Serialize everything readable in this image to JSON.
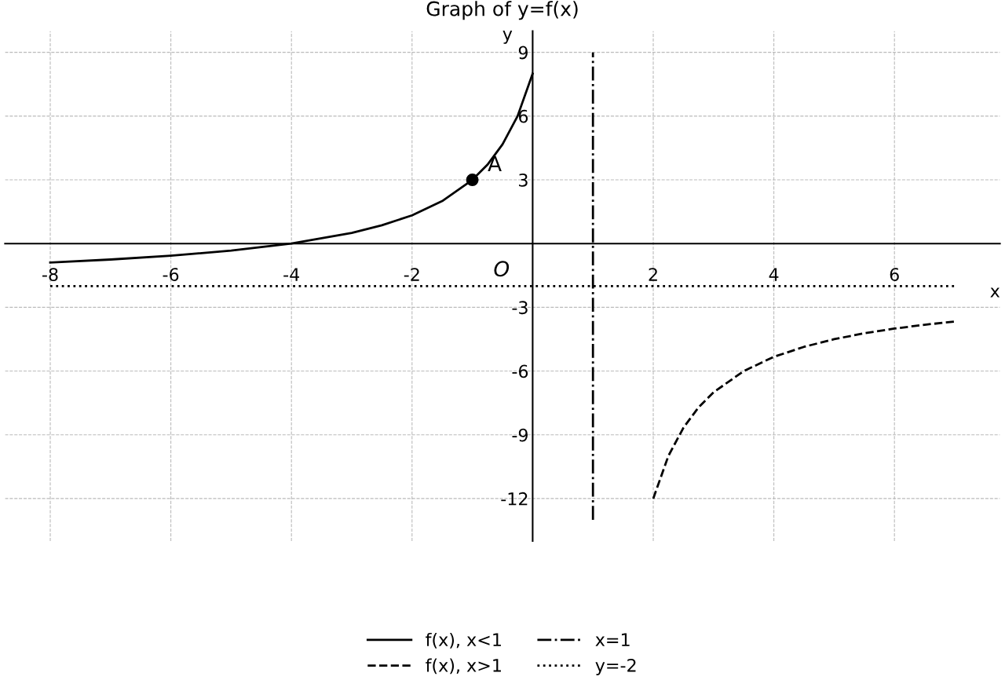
{
  "chart_data": {
    "type": "line",
    "title": "Graph of y=f(x)",
    "xlabel": "x",
    "ylabel": "y",
    "series": [
      {
        "name": "f(x), x<1",
        "color": "#000000",
        "line_style": "solid",
        "x": [
          -8,
          -7,
          -6,
          -5,
          -4,
          -3,
          -2.5,
          -2,
          -1.5,
          -1,
          -0.75,
          -0.5,
          -0.25,
          0
        ],
        "values": [
          -0.89,
          -0.75,
          -0.57,
          -0.33,
          0,
          0.5,
          0.86,
          1.33,
          2,
          3,
          3.71,
          4.67,
          6,
          8
        ]
      },
      {
        "name": "f(x), x>1",
        "color": "#000000",
        "line_style": "dashed",
        "x": [
          2,
          2.25,
          2.5,
          2.75,
          3,
          3.5,
          4,
          4.5,
          5,
          5.5,
          6,
          6.5,
          7
        ],
        "values": [
          -12,
          -10,
          -8.67,
          -7.71,
          -7,
          -6,
          -5.33,
          -4.86,
          -4.5,
          -4.22,
          -4,
          -3.82,
          -3.67
        ]
      },
      {
        "name": "x=1",
        "color": "#000000",
        "line_style": "dashdot",
        "x": [
          1,
          1
        ],
        "values": [
          -13,
          9
        ]
      },
      {
        "name": "y=-2",
        "color": "#000000",
        "line_style": "dotted",
        "x": [
          -8,
          7
        ],
        "values": [
          -2,
          -2
        ]
      },
      {
        "type": "scatter",
        "color": "#000000",
        "marker": "circle",
        "x": [
          -1
        ],
        "values": [
          3
        ]
      }
    ],
    "annotations": [
      {
        "text": "A",
        "x": -1,
        "y": 3
      },
      "O"
    ],
    "xlim": [
      -8.75,
      7.75
    ],
    "ylim": [
      -14,
      10
    ],
    "xticks": [
      -8,
      -6,
      -4,
      -2,
      2,
      4,
      6
    ],
    "yticks": [
      -12,
      -9,
      -6,
      -3,
      3,
      6,
      9
    ],
    "grid": true,
    "legend": "bottom"
  }
}
